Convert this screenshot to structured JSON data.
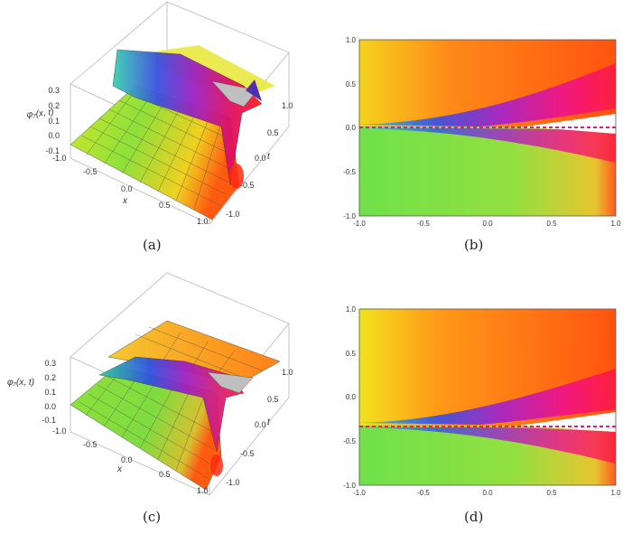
{
  "captions": {
    "a": "(a)",
    "b": "(b)",
    "c": "(c)",
    "d": "(d)"
  },
  "surface_plots": [
    {
      "id": "a",
      "z_label": "φ₇(x, t)",
      "z_ticks": [
        "0.3",
        "0.2",
        "0.1",
        "0.0",
        "-0.1"
      ],
      "x_label": "x",
      "x_ticks": [
        "-1.0",
        "-0.5",
        "0.0",
        "0.5",
        "1.0"
      ],
      "t_label": "t",
      "t_ticks": [
        "1.0",
        "0.5",
        "0.0",
        "-0.5",
        "-1.0"
      ]
    },
    {
      "id": "c",
      "z_label": "φ₇(x, t)",
      "z_ticks": [
        "0.3",
        "0.2",
        "0.1",
        "0.0",
        "-0.1"
      ],
      "x_label": "x",
      "x_ticks": [
        "-1.0",
        "-0.5",
        "0.0",
        "0.5",
        "1.0"
      ],
      "t_label": "t",
      "t_ticks": [
        "1.0",
        "0.5",
        "0.0",
        "-0.5",
        "-1.0"
      ]
    }
  ],
  "density_plots": [
    {
      "id": "b",
      "y_ticks": [
        "1.0",
        "0.5",
        "0.0",
        "-0.5",
        "-1.0"
      ],
      "x_ticks": [
        "-1.0",
        "-0.5",
        "0.0",
        "0.5",
        "1.0"
      ],
      "singular_line_t": 0.0
    },
    {
      "id": "d",
      "y_ticks": [
        "1.0",
        "0.5",
        "0.0",
        "-0.5",
        "-1.0"
      ],
      "x_ticks": [
        "-1.0",
        "-0.5",
        "0.0",
        "0.5",
        "1.0"
      ],
      "singular_line_t": -0.35
    }
  ]
}
